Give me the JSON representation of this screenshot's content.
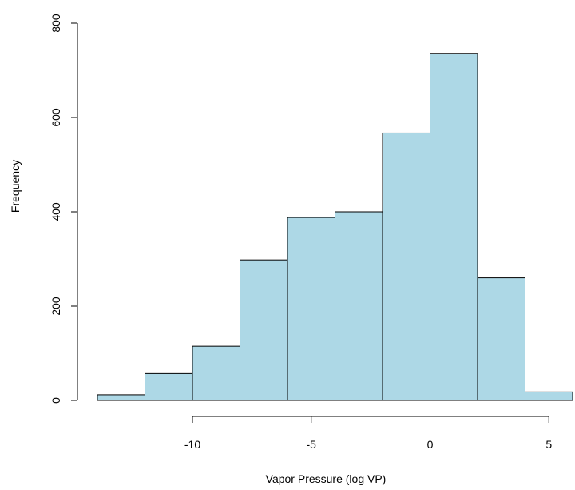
{
  "chart_data": {
    "type": "histogram",
    "xlabel": "Vapor Pressure (log VP)",
    "ylabel": "Frequency",
    "bins": [
      -14,
      -12,
      -10,
      -8,
      -6,
      -4,
      -2,
      0,
      2,
      4,
      6
    ],
    "counts": [
      12,
      57,
      115,
      298,
      388,
      400,
      567,
      736,
      260,
      18
    ],
    "color": "#add8e6",
    "xlim": [
      -14,
      6
    ],
    "xticks": [
      -10,
      -5,
      0,
      5
    ],
    "ylim": [
      0,
      800
    ],
    "yticks": [
      0,
      200,
      400,
      600,
      800
    ]
  }
}
